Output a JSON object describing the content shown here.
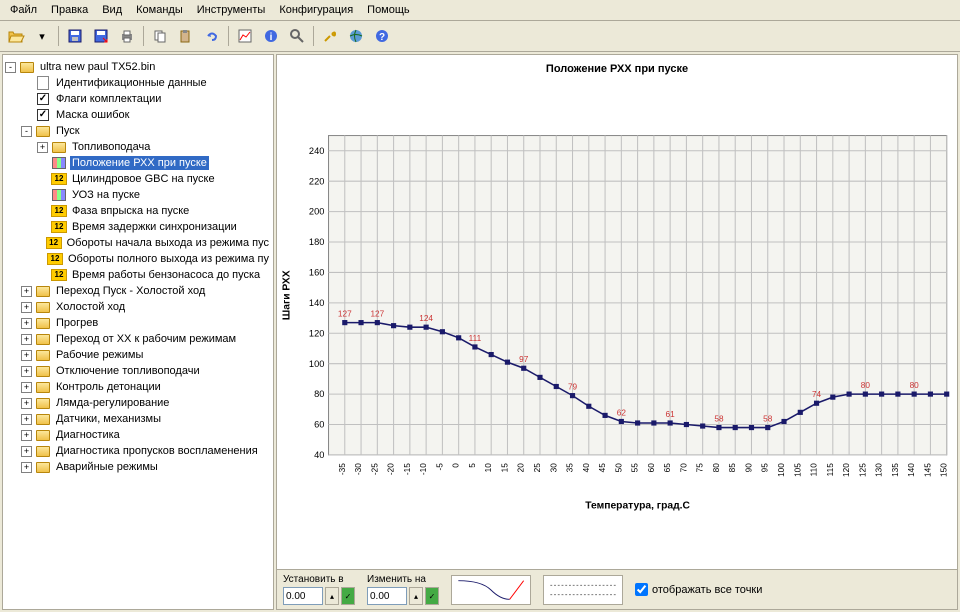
{
  "menu": [
    "Файл",
    "Правка",
    "Вид",
    "Команды",
    "Инструменты",
    "Конфигурация",
    "Помощь"
  ],
  "tree": {
    "root": "ultra new paul TX52.bin",
    "items": [
      {
        "icon": "doc",
        "label": "Идентификационные данные",
        "indent": 1
      },
      {
        "icon": "check",
        "label": "Флаги комплектации",
        "indent": 1
      },
      {
        "icon": "check",
        "label": "Маска ошибок",
        "indent": 1
      },
      {
        "icon": "folder",
        "label": "Пуск",
        "indent": 1,
        "toggle": "-"
      },
      {
        "icon": "folder",
        "label": "Топливоподача",
        "indent": 2,
        "toggle": "+"
      },
      {
        "icon": "chart",
        "label": "Положение РХХ при пуске",
        "indent": 2,
        "selected": true
      },
      {
        "icon": "num",
        "label": "Цилиндровое GBC на пуске",
        "indent": 2
      },
      {
        "icon": "chart",
        "label": "УОЗ на пуске",
        "indent": 2
      },
      {
        "icon": "num",
        "label": "Фаза впрыска на пуске",
        "indent": 2
      },
      {
        "icon": "num",
        "label": "Время задержки синхронизации",
        "indent": 2
      },
      {
        "icon": "num",
        "label": "Обороты начала выхода из режима пус",
        "indent": 2
      },
      {
        "icon": "num",
        "label": "Обороты полного выхода из режима пу",
        "indent": 2
      },
      {
        "icon": "num",
        "label": "Время работы бензонасоса до пуска",
        "indent": 2
      },
      {
        "icon": "folder",
        "label": "Переход Пуск - Холостой ход",
        "indent": 1,
        "toggle": "+"
      },
      {
        "icon": "folder",
        "label": "Холостой ход",
        "indent": 1,
        "toggle": "+"
      },
      {
        "icon": "folder",
        "label": "Прогрев",
        "indent": 1,
        "toggle": "+"
      },
      {
        "icon": "folder",
        "label": "Переход от ХХ к рабочим режимам",
        "indent": 1,
        "toggle": "+"
      },
      {
        "icon": "folder",
        "label": "Рабочие режимы",
        "indent": 1,
        "toggle": "+"
      },
      {
        "icon": "folder",
        "label": "Отключение топливоподачи",
        "indent": 1,
        "toggle": "+"
      },
      {
        "icon": "folder",
        "label": "Контроль детонации",
        "indent": 1,
        "toggle": "+"
      },
      {
        "icon": "folder",
        "label": "Лямда-регулирование",
        "indent": 1,
        "toggle": "+"
      },
      {
        "icon": "folder",
        "label": "Датчики, механизмы",
        "indent": 1,
        "toggle": "+"
      },
      {
        "icon": "folder",
        "label": "Диагностика",
        "indent": 1,
        "toggle": "+"
      },
      {
        "icon": "folder",
        "label": "Диагностика пропусков воспламенения",
        "indent": 1,
        "toggle": "+"
      },
      {
        "icon": "folder",
        "label": "Аварийные режимы",
        "indent": 1,
        "toggle": "+"
      }
    ]
  },
  "chart": {
    "title": "Положение РХХ при пуске",
    "xlabel": "Температура, град.С",
    "ylabel": "Шаги РХХ",
    "xlim": [
      -40,
      150
    ],
    "ylim": [
      40,
      250
    ],
    "xticks": [
      -35,
      -30,
      -25,
      -20,
      -15,
      -10,
      -5,
      0,
      5,
      10,
      15,
      20,
      25,
      30,
      35,
      40,
      45,
      50,
      55,
      60,
      65,
      70,
      75,
      80,
      85,
      90,
      95,
      100,
      105,
      110,
      115,
      120,
      125,
      130,
      135,
      140,
      145,
      150
    ],
    "yticks": [
      40,
      60,
      80,
      100,
      120,
      140,
      160,
      180,
      200,
      220,
      240
    ],
    "data": [
      {
        "x": -35,
        "y": 127,
        "label": "127"
      },
      {
        "x": -30,
        "y": 127
      },
      {
        "x": -25,
        "y": 127,
        "label": "127"
      },
      {
        "x": -20,
        "y": 125
      },
      {
        "x": -15,
        "y": 124
      },
      {
        "x": -10,
        "y": 124,
        "label": "124"
      },
      {
        "x": -5,
        "y": 121
      },
      {
        "x": 0,
        "y": 117
      },
      {
        "x": 5,
        "y": 111,
        "label": "111"
      },
      {
        "x": 10,
        "y": 106
      },
      {
        "x": 15,
        "y": 101
      },
      {
        "x": 20,
        "y": 97,
        "label": "97"
      },
      {
        "x": 25,
        "y": 91
      },
      {
        "x": 30,
        "y": 85
      },
      {
        "x": 35,
        "y": 79,
        "label": "79"
      },
      {
        "x": 40,
        "y": 72
      },
      {
        "x": 45,
        "y": 66
      },
      {
        "x": 50,
        "y": 62,
        "label": "62"
      },
      {
        "x": 55,
        "y": 61
      },
      {
        "x": 60,
        "y": 61
      },
      {
        "x": 65,
        "y": 61,
        "label": "61"
      },
      {
        "x": 70,
        "y": 60
      },
      {
        "x": 75,
        "y": 59
      },
      {
        "x": 80,
        "y": 58,
        "label": "58"
      },
      {
        "x": 85,
        "y": 58
      },
      {
        "x": 90,
        "y": 58
      },
      {
        "x": 95,
        "y": 58,
        "label": "58"
      },
      {
        "x": 100,
        "y": 62
      },
      {
        "x": 105,
        "y": 68
      },
      {
        "x": 110,
        "y": 74,
        "label": "74"
      },
      {
        "x": 115,
        "y": 78
      },
      {
        "x": 120,
        "y": 80
      },
      {
        "x": 125,
        "y": 80,
        "label": "80"
      },
      {
        "x": 130,
        "y": 80
      },
      {
        "x": 135,
        "y": 80
      },
      {
        "x": 140,
        "y": 80,
        "label": "80"
      },
      {
        "x": 145,
        "y": 80
      },
      {
        "x": 150,
        "y": 80
      }
    ],
    "line_color": "#1a1a6a",
    "marker_color": "#1a1a6a",
    "marker_size": 5,
    "label_color": "#cc3333",
    "grid_color": "#c0c0c0",
    "background": "#ffffff",
    "plot_bg": "#f4f4f0"
  },
  "bottom": {
    "set_label": "Установить в",
    "change_label": "Изменить на",
    "set_value": "0.00",
    "change_value": "0.00",
    "checkbox_label": "отображать все точки",
    "checkbox_checked": true
  }
}
